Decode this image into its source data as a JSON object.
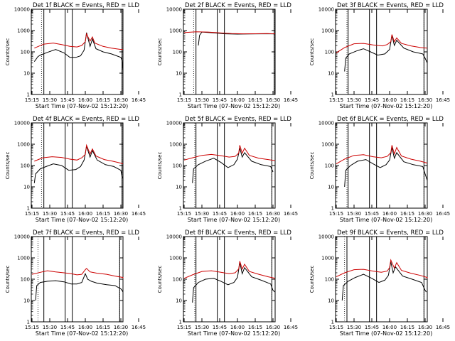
{
  "chart_data": [
    {
      "type": "line",
      "title": "Det 1f BLACK = Events, RED = LLD",
      "xlabel": "Start Time (07-Nov-02 15:12:20)",
      "ylabel": "Counts/sec",
      "yscale": "log",
      "ylim": [
        1,
        10000
      ],
      "yticks": [
        "1",
        "10",
        "100",
        "1000",
        "10000"
      ],
      "xticks": [
        "15:15",
        "15:30",
        "15:45",
        "16:00",
        "16:15",
        "16:30",
        "16:45"
      ],
      "series": [
        {
          "color": "#000000",
          "x": [
            "15:17",
            "15:20",
            "15:22",
            "15:28",
            "15:35",
            "15:42",
            "15:47",
            "15:52",
            "15:56",
            "15:59",
            "16:01",
            "16:04",
            "16:06",
            "16:09",
            "16:15",
            "16:22",
            "16:30",
            "16:31",
            "16:33"
          ],
          "values": [
            35,
            60,
            70,
            95,
            130,
            90,
            55,
            55,
            65,
            120,
            800,
            180,
            400,
            140,
            100,
            80,
            55,
            40,
            12
          ]
        },
        {
          "color": "#cc0000",
          "x": [
            "15:17",
            "15:25",
            "15:33",
            "15:40",
            "15:47",
            "15:53",
            "15:57",
            "16:00",
            "16:01",
            "16:04",
            "16:06",
            "16:08",
            "16:15",
            "16:22",
            "16:30",
            "16:36",
            "16:43"
          ],
          "values": [
            150,
            230,
            260,
            220,
            180,
            170,
            200,
            300,
            700,
            320,
            500,
            260,
            180,
            150,
            130,
            130,
            130
          ]
        }
      ],
      "markers": {
        "dotted": [
          "15:23",
          "16:31"
        ],
        "solid": [
          "15:25",
          "15:43",
          "15:49",
          "16:31"
        ]
      }
    },
    {
      "type": "line",
      "title": "Det 2f BLACK = Events, RED = LLD",
      "xlabel": "Start Time (07-Nov-02 15:12:20)",
      "ylabel": "Counts/sec",
      "yscale": "log",
      "ylim": [
        1,
        10000
      ],
      "yticks": [
        "1",
        "10",
        "100",
        "1000",
        "10000"
      ],
      "xticks": [
        "15:15",
        "15:30",
        "15:45",
        "16:00",
        "16:15",
        "16:30",
        "16:45"
      ],
      "series": [
        {
          "color": "#000000",
          "x": [
            "15:27",
            "15:28",
            "15:30",
            "15:40",
            "15:50",
            "16:00",
            "16:10",
            "16:20",
            "16:30",
            "16:42"
          ],
          "values": [
            200,
            600,
            850,
            780,
            700,
            680,
            690,
            700,
            700,
            680
          ]
        },
        {
          "color": "#cc0000",
          "x": [
            "15:15",
            "15:25",
            "15:35",
            "15:45",
            "15:55",
            "16:05",
            "16:15",
            "16:25",
            "16:35",
            "16:42"
          ],
          "values": [
            800,
            880,
            850,
            780,
            720,
            700,
            710,
            720,
            700,
            700
          ]
        }
      ],
      "markers": {
        "dotted": [
          "15:23",
          "16:31"
        ],
        "solid": [
          "15:25",
          "15:43",
          "15:49",
          "16:31"
        ]
      }
    },
    {
      "type": "line",
      "title": "Det 3f BLACK = Events, RED = LLD",
      "xlabel": "Start Time (07-Nov-02 15:12:20)",
      "ylabel": "Counts/sec",
      "yscale": "log",
      "ylim": [
        1,
        10000
      ],
      "yticks": [
        "1",
        "10",
        "100",
        "1000",
        "10000"
      ],
      "xticks": [
        "15:15",
        "15:30",
        "15:45",
        "16:00",
        "16:15",
        "16:30",
        "16:45"
      ],
      "series": [
        {
          "color": "#000000",
          "x": [
            "15:22",
            "15:23",
            "15:26",
            "15:32",
            "15:38",
            "15:44",
            "15:50",
            "15:56",
            "16:00",
            "16:02",
            "16:04",
            "16:06",
            "16:12",
            "16:20",
            "16:28",
            "16:30",
            "16:32"
          ],
          "values": [
            12,
            50,
            80,
            110,
            140,
            100,
            70,
            80,
            130,
            600,
            200,
            350,
            150,
            100,
            80,
            50,
            30
          ]
        },
        {
          "color": "#cc0000",
          "x": [
            "15:15",
            "15:22",
            "15:30",
            "15:38",
            "15:46",
            "15:54",
            "15:58",
            "16:01",
            "16:02",
            "16:04",
            "16:06",
            "16:10",
            "16:18",
            "16:26",
            "16:34",
            "16:43"
          ],
          "values": [
            90,
            160,
            240,
            250,
            210,
            190,
            220,
            300,
            650,
            300,
            450,
            250,
            190,
            160,
            150,
            150
          ]
        }
      ],
      "markers": {
        "dotted": [
          "15:24",
          "16:29"
        ],
        "solid": [
          "15:25",
          "15:43",
          "15:49",
          "16:29"
        ]
      }
    },
    {
      "type": "line",
      "title": "Det 4f BLACK = Events, RED = LLD",
      "xlabel": "Start Time (07-Nov-02 15:12:20)",
      "ylabel": "Counts/sec",
      "yscale": "log",
      "ylim": [
        1,
        10000
      ],
      "yticks": [
        "1",
        "10",
        "100",
        "1000",
        "10000"
      ],
      "xticks": [
        "15:15",
        "15:30",
        "15:45",
        "16:00",
        "16:15",
        "16:30",
        "16:45"
      ],
      "series": [
        {
          "color": "#000000",
          "x": [
            "15:17",
            "15:18",
            "15:22",
            "15:27",
            "15:33",
            "15:40",
            "15:46",
            "15:52",
            "15:56",
            "15:59",
            "16:01",
            "16:04",
            "16:06",
            "16:10",
            "16:17",
            "16:24",
            "16:30",
            "16:31",
            "16:33"
          ],
          "values": [
            15,
            40,
            70,
            90,
            120,
            100,
            60,
            65,
            90,
            180,
            800,
            250,
            500,
            180,
            110,
            90,
            60,
            30,
            25
          ]
        },
        {
          "color": "#cc0000",
          "x": [
            "15:17",
            "15:24",
            "15:32",
            "15:40",
            "15:47",
            "15:53",
            "15:57",
            "16:00",
            "16:01",
            "16:04",
            "16:06",
            "16:09",
            "16:16",
            "16:23",
            "16:30",
            "16:36",
            "16:43"
          ],
          "values": [
            160,
            230,
            260,
            240,
            200,
            180,
            230,
            330,
            900,
            350,
            600,
            280,
            190,
            160,
            130,
            120,
            120
          ]
        }
      ],
      "markers": {
        "dotted": [
          "15:23",
          "16:31"
        ],
        "solid": [
          "15:25",
          "15:43",
          "15:49",
          "16:31"
        ]
      }
    },
    {
      "type": "line",
      "title": "Det 5f BLACK = Events, RED = LLD",
      "xlabel": "Start Time (07-Nov-02 15:12:20)",
      "ylabel": "Counts/sec",
      "yscale": "log",
      "ylim": [
        1,
        10000
      ],
      "yticks": [
        "1",
        "10",
        "100",
        "1000",
        "10000"
      ],
      "xticks": [
        "15:15",
        "15:30",
        "15:45",
        "16:00",
        "16:15",
        "16:30",
        "16:45"
      ],
      "series": [
        {
          "color": "#000000",
          "x": [
            "15:22",
            "15:23",
            "15:27",
            "15:33",
            "15:40",
            "15:46",
            "15:52",
            "15:57",
            "16:00",
            "16:02",
            "16:04",
            "16:06",
            "16:12",
            "16:20",
            "16:28",
            "16:30"
          ],
          "values": [
            15,
            70,
            110,
            160,
            220,
            140,
            80,
            110,
            200,
            650,
            250,
            400,
            160,
            110,
            90,
            50
          ]
        },
        {
          "color": "#cc0000",
          "x": [
            "15:15",
            "15:22",
            "15:30",
            "15:38",
            "15:46",
            "15:53",
            "15:58",
            "16:01",
            "16:02",
            "16:04",
            "16:06",
            "16:10",
            "16:18",
            "16:26",
            "16:34",
            "16:42"
          ],
          "values": [
            180,
            230,
            300,
            330,
            290,
            250,
            270,
            380,
            900,
            380,
            650,
            300,
            220,
            190,
            170,
            170
          ]
        }
      ],
      "markers": {
        "dotted": [
          "15:24",
          "16:29"
        ],
        "solid": [
          "15:25",
          "15:43",
          "15:49",
          "16:29"
        ]
      }
    },
    {
      "type": "line",
      "title": "Det 6f BLACK = Events, RED = LLD",
      "xlabel": "Start Time (07-Nov-02 15:12:20)",
      "ylabel": "Counts/sec",
      "yscale": "log",
      "ylim": [
        1,
        10000
      ],
      "yticks": [
        "1",
        "10",
        "100",
        "1000",
        "10000"
      ],
      "xticks": [
        "15:15",
        "15:30",
        "15:45",
        "16:00",
        "16:15",
        "16:30",
        "16:45"
      ],
      "series": [
        {
          "color": "#000000",
          "x": [
            "15:22",
            "15:23",
            "15:27",
            "15:33",
            "15:40",
            "15:46",
            "15:52",
            "15:57",
            "16:00",
            "16:02",
            "16:04",
            "16:06",
            "16:12",
            "16:20",
            "16:28",
            "16:30",
            "16:32"
          ],
          "values": [
            10,
            60,
            100,
            160,
            190,
            120,
            80,
            110,
            180,
            700,
            220,
            400,
            150,
            110,
            90,
            40,
            20
          ]
        },
        {
          "color": "#cc0000",
          "x": [
            "15:15",
            "15:22",
            "15:30",
            "15:38",
            "15:46",
            "15:53",
            "15:58",
            "16:01",
            "16:02",
            "16:04",
            "16:06",
            "16:10",
            "16:18",
            "16:26",
            "16:34",
            "16:43"
          ],
          "values": [
            120,
            200,
            300,
            320,
            260,
            230,
            270,
            400,
            900,
            350,
            700,
            280,
            200,
            160,
            130,
            130
          ]
        }
      ],
      "markers": {
        "dotted": [
          "15:24",
          "16:29"
        ],
        "solid": [
          "15:25",
          "15:43",
          "15:49",
          "16:29"
        ]
      }
    },
    {
      "type": "line",
      "title": "Det 7f BLACK = Events, RED = LLD",
      "xlabel": "Start Time (07-Nov-02 15:12:20)",
      "ylabel": "Counts/sec",
      "yscale": "log",
      "ylim": [
        1,
        10000
      ],
      "yticks": [
        "1",
        "10",
        "100",
        "1000",
        "10000"
      ],
      "xticks": [
        "15:15",
        "15:30",
        "15:45",
        "16:00",
        "16:15",
        "16:30",
        "16:45"
      ],
      "series": [
        {
          "color": "#000000",
          "x": [
            "15:18",
            "15:19",
            "15:22",
            "15:28",
            "15:35",
            "15:42",
            "15:48",
            "15:53",
            "15:57",
            "16:00",
            "16:02",
            "16:05",
            "16:10",
            "16:18",
            "16:25",
            "16:30",
            "16:31",
            "16:33"
          ],
          "values": [
            10,
            50,
            70,
            80,
            85,
            75,
            60,
            60,
            70,
            180,
            100,
            80,
            65,
            55,
            50,
            35,
            30,
            25
          ]
        },
        {
          "color": "#cc0000",
          "x": [
            "15:15",
            "15:22",
            "15:28",
            "15:35",
            "15:42",
            "15:48",
            "15:53",
            "15:57",
            "16:00",
            "16:01",
            "16:04",
            "16:10",
            "16:18",
            "16:25",
            "16:32",
            "16:38",
            "16:43"
          ],
          "values": [
            170,
            210,
            250,
            220,
            200,
            180,
            160,
            170,
            280,
            320,
            220,
            190,
            170,
            140,
            120,
            110,
            110
          ]
        }
      ],
      "markers": {
        "dotted": [
          "15:20",
          "16:29"
        ],
        "solid": [
          "15:25",
          "15:43",
          "15:49",
          "16:29"
        ]
      }
    },
    {
      "type": "line",
      "title": "Det 8f BLACK = Events, RED = LLD",
      "xlabel": "Start Time (07-Nov-02 15:12:20)",
      "ylabel": "Counts/sec",
      "yscale": "log",
      "ylim": [
        1,
        10000
      ],
      "yticks": [
        "1",
        "10",
        "100",
        "1000",
        "10000"
      ],
      "xticks": [
        "15:15",
        "15:30",
        "15:45",
        "16:00",
        "16:15",
        "16:30",
        "16:45"
      ],
      "series": [
        {
          "color": "#000000",
          "x": [
            "15:22",
            "15:23",
            "15:27",
            "15:33",
            "15:40",
            "15:46",
            "15:52",
            "15:57",
            "16:00",
            "16:02",
            "16:04",
            "16:06",
            "16:12",
            "16:20",
            "16:28",
            "16:30",
            "16:32"
          ],
          "values": [
            8,
            40,
            70,
            100,
            110,
            80,
            55,
            70,
            120,
            600,
            180,
            350,
            130,
            90,
            60,
            30,
            25
          ]
        },
        {
          "color": "#cc0000",
          "x": [
            "15:15",
            "15:22",
            "15:30",
            "15:38",
            "15:46",
            "15:53",
            "15:58",
            "16:01",
            "16:02",
            "16:04",
            "16:06",
            "16:10",
            "16:18",
            "16:26",
            "16:34",
            "16:42"
          ],
          "values": [
            110,
            160,
            230,
            250,
            210,
            180,
            200,
            300,
            700,
            300,
            500,
            230,
            170,
            130,
            110,
            110
          ]
        }
      ],
      "markers": {
        "dotted": [
          "15:24",
          "16:29"
        ],
        "solid": [
          "15:25",
          "15:43",
          "15:49",
          "16:29"
        ]
      }
    },
    {
      "type": "line",
      "title": "Det 9f BLACK = Events, RED = LLD",
      "xlabel": "Start Time (07-Nov-02 15:12:20)",
      "ylabel": "Counts/sec",
      "yscale": "log",
      "ylim": [
        1,
        10000
      ],
      "yticks": [
        "1",
        "10",
        "100",
        "1000",
        "10000"
      ],
      "xticks": [
        "15:15",
        "15:30",
        "15:45",
        "16:00",
        "16:15",
        "16:30",
        "16:45"
      ],
      "series": [
        {
          "color": "#000000",
          "x": [
            "15:20",
            "15:21",
            "15:25",
            "15:31",
            "15:38",
            "15:45",
            "15:51",
            "15:56",
            "15:59",
            "16:01",
            "16:03",
            "16:05",
            "16:11",
            "16:19",
            "16:27",
            "16:30",
            "16:31"
          ],
          "values": [
            10,
            50,
            80,
            120,
            170,
            110,
            70,
            90,
            150,
            650,
            200,
            380,
            140,
            100,
            70,
            30,
            25
          ]
        },
        {
          "color": "#cc0000",
          "x": [
            "15:15",
            "15:22",
            "15:30",
            "15:38",
            "15:46",
            "15:53",
            "15:58",
            "16:00",
            "16:01",
            "16:04",
            "16:06",
            "16:10",
            "16:18",
            "16:26",
            "16:34",
            "16:43"
          ],
          "values": [
            130,
            200,
            280,
            290,
            240,
            210,
            240,
            350,
            800,
            330,
            600,
            260,
            190,
            150,
            120,
            110
          ]
        }
      ],
      "markers": {
        "dotted": [
          "15:22",
          "16:29"
        ],
        "solid": [
          "15:24",
          "15:43",
          "15:49",
          "16:29"
        ]
      }
    }
  ]
}
